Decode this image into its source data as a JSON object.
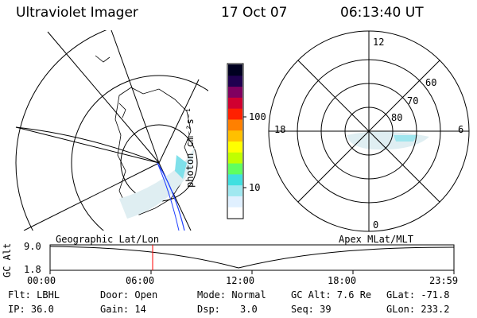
{
  "header": {
    "instrument": "Ultraviolet Imager",
    "date": "17 Oct 07",
    "time": "06:13:40 UT"
  },
  "colorbar": {
    "unit_label": "photon cm⁻²s⁻¹",
    "ticks": [
      "100",
      "10"
    ],
    "colors": [
      "#ffffff",
      "#e0f0ff",
      "#a0e8f0",
      "#40e0e0",
      "#60ff60",
      "#c0ff00",
      "#ffff00",
      "#ffc000",
      "#ff8000",
      "#ff2000",
      "#d00030",
      "#800060",
      "#200050",
      "#000020"
    ]
  },
  "apex_plot": {
    "clock_labels": [
      "12",
      "18",
      "6",
      "0"
    ],
    "lat_labels": [
      "60",
      "70",
      "80"
    ]
  },
  "altitude_panel": {
    "left_title": "Geographic Lat/Lon",
    "right_title": "Apex MLat/MLT",
    "axis_label": "GC Alt",
    "y_ticks": [
      "9.0",
      "1.8"
    ],
    "x_ticks": [
      "00:00",
      "06:00",
      "12:00",
      "18:00",
      "23:59"
    ],
    "marker_color": "#ff0000"
  },
  "footer": {
    "row1": {
      "filter": "Flt: LBHL",
      "door": "Door: Open",
      "mode": "Mode: Normal",
      "gc_alt": "GC Alt: 7.6 Re",
      "glat": "GLat: -71.8"
    },
    "row2": {
      "ip": "IP: 36.0",
      "gain": "Gain: 14",
      "dsp_label": "Dsp:",
      "dsp_value": "3.0",
      "seq": "Seq: 39",
      "glon": "GLon: 233.2"
    }
  }
}
